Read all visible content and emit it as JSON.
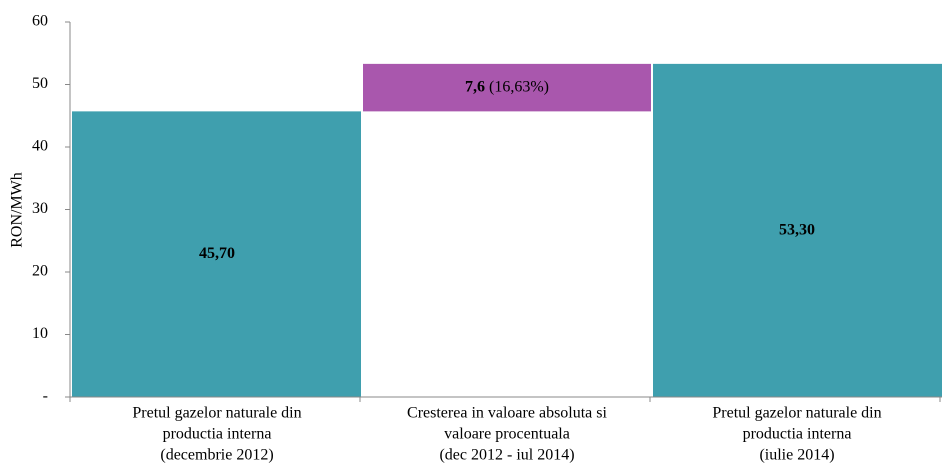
{
  "chart_data": {
    "type": "waterfall",
    "categories": [
      [
        "Pretul gazelor naturale din",
        "productia interna",
        "(decembrie 2012)"
      ],
      [
        "Cresterea in valoare absoluta si",
        "valoare procentuala",
        "(dec 2012 - iul 2014)"
      ],
      [
        "Pretul gazelor naturale din",
        "productia interna",
        "(iulie 2014)"
      ]
    ],
    "values": [
      45.7,
      7.6,
      53.3
    ],
    "value_labels": [
      "45,70",
      "7,6",
      "53,30"
    ],
    "kinds": [
      "total",
      "increase",
      "total"
    ],
    "colors": {
      "total": "#3f9fae",
      "increase": "#a957ad"
    },
    "change_percent": 16.63,
    "change_percent_label": "(16,63%)",
    "ylabel": "RON/MWh",
    "ylim": [
      0,
      60
    ],
    "yticks": [
      {
        "value": 0,
        "label": "-"
      },
      10,
      20,
      30,
      40,
      50,
      60
    ]
  }
}
